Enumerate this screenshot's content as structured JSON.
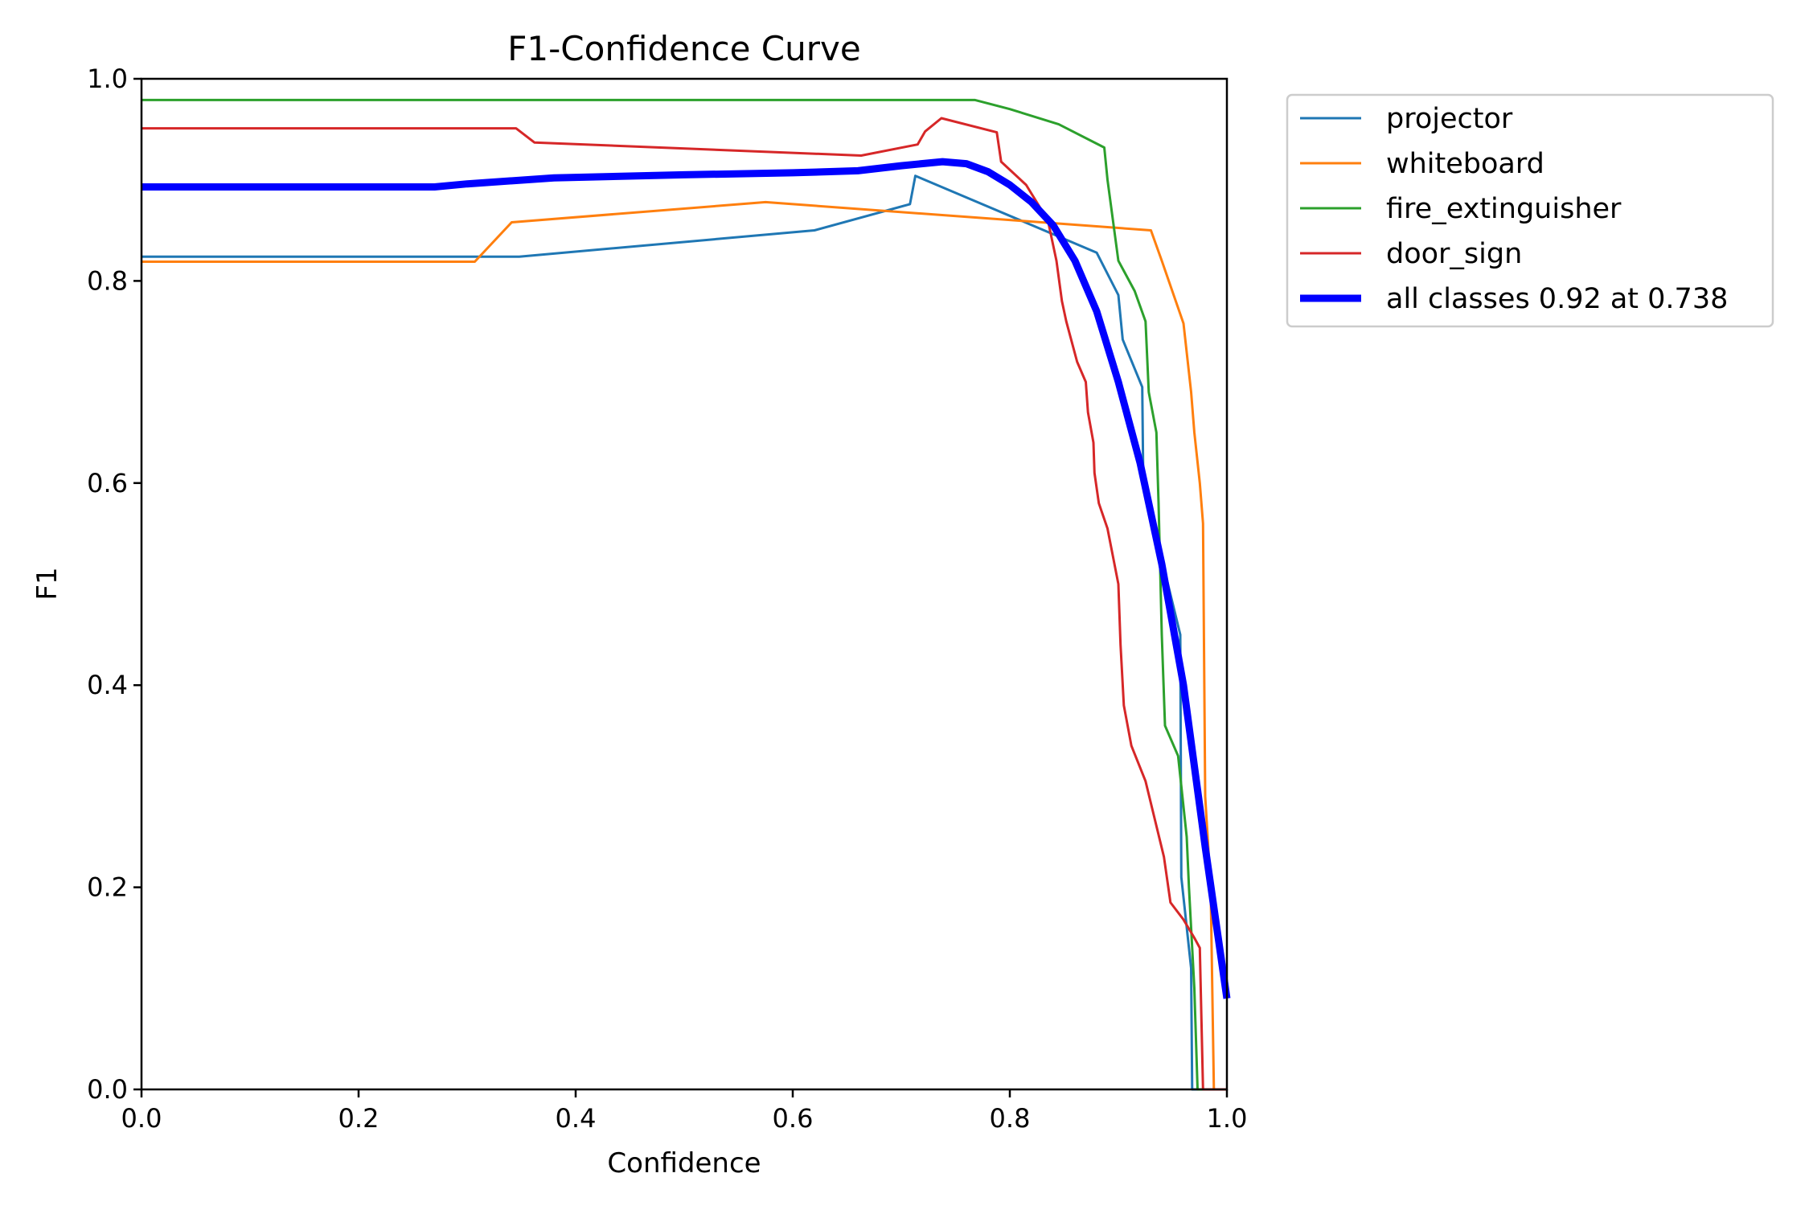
{
  "chart_data": {
    "type": "line",
    "title": "F1-Confidence Curve",
    "xlabel": "Confidence",
    "ylabel": "F1",
    "xlim": [
      0,
      1
    ],
    "ylim": [
      0,
      1
    ],
    "xticks": [
      "0.0",
      "0.2",
      "0.4",
      "0.6",
      "0.8",
      "1.0"
    ],
    "yticks": [
      "0.0",
      "0.2",
      "0.4",
      "0.6",
      "0.8",
      "1.0"
    ],
    "grid": false,
    "legend_position": "outside-top-right",
    "series": [
      {
        "name": "projector",
        "color": "#1f77b4",
        "emphasis": false,
        "points": [
          [
            0,
            0.824
          ],
          [
            0.348,
            0.824
          ],
          [
            0.62,
            0.85
          ],
          [
            0.708,
            0.876
          ],
          [
            0.713,
            0.904
          ],
          [
            0.88,
            0.828
          ],
          [
            0.9,
            0.786
          ],
          [
            0.904,
            0.742
          ],
          [
            0.922,
            0.695
          ],
          [
            0.923,
            0.6
          ],
          [
            0.957,
            0.45
          ],
          [
            0.958,
            0.21
          ],
          [
            0.967,
            0.12
          ],
          [
            0.968,
            0.0
          ],
          [
            1.0,
            0.0
          ]
        ]
      },
      {
        "name": "whiteboard",
        "color": "#ff7f0e",
        "emphasis": false,
        "points": [
          [
            0,
            0.819
          ],
          [
            0.307,
            0.819
          ],
          [
            0.341,
            0.858
          ],
          [
            0.575,
            0.878
          ],
          [
            0.93,
            0.85
          ],
          [
            0.94,
            0.82
          ],
          [
            0.96,
            0.758
          ],
          [
            0.967,
            0.69
          ],
          [
            0.97,
            0.65
          ],
          [
            0.975,
            0.6
          ],
          [
            0.978,
            0.56
          ],
          [
            0.98,
            0.29
          ],
          [
            0.985,
            0.2
          ],
          [
            0.988,
            0.0
          ],
          [
            1.0,
            0.0
          ]
        ]
      },
      {
        "name": "fire_extinguisher",
        "color": "#2ca02c",
        "emphasis": false,
        "points": [
          [
            0,
            0.979
          ],
          [
            0.768,
            0.979
          ],
          [
            0.8,
            0.97
          ],
          [
            0.845,
            0.955
          ],
          [
            0.887,
            0.932
          ],
          [
            0.89,
            0.9
          ],
          [
            0.9,
            0.82
          ],
          [
            0.915,
            0.79
          ],
          [
            0.925,
            0.76
          ],
          [
            0.928,
            0.69
          ],
          [
            0.935,
            0.65
          ],
          [
            0.937,
            0.58
          ],
          [
            0.94,
            0.45
          ],
          [
            0.943,
            0.36
          ],
          [
            0.955,
            0.33
          ],
          [
            0.963,
            0.25
          ],
          [
            0.965,
            0.2
          ],
          [
            0.97,
            0.1
          ],
          [
            0.973,
            0.0
          ],
          [
            1.0,
            0.0
          ]
        ]
      },
      {
        "name": "door_sign",
        "color": "#d62728",
        "emphasis": false,
        "points": [
          [
            0,
            0.951
          ],
          [
            0.345,
            0.951
          ],
          [
            0.362,
            0.937
          ],
          [
            0.663,
            0.924
          ],
          [
            0.715,
            0.935
          ],
          [
            0.722,
            0.948
          ],
          [
            0.737,
            0.961
          ],
          [
            0.788,
            0.947
          ],
          [
            0.792,
            0.918
          ],
          [
            0.815,
            0.895
          ],
          [
            0.835,
            0.86
          ],
          [
            0.843,
            0.82
          ],
          [
            0.848,
            0.78
          ],
          [
            0.852,
            0.76
          ],
          [
            0.862,
            0.72
          ],
          [
            0.87,
            0.7
          ],
          [
            0.872,
            0.67
          ],
          [
            0.877,
            0.64
          ],
          [
            0.878,
            0.61
          ],
          [
            0.882,
            0.58
          ],
          [
            0.89,
            0.555
          ],
          [
            0.9,
            0.5
          ],
          [
            0.902,
            0.44
          ],
          [
            0.905,
            0.38
          ],
          [
            0.912,
            0.34
          ],
          [
            0.925,
            0.305
          ],
          [
            0.942,
            0.23
          ],
          [
            0.948,
            0.185
          ],
          [
            0.96,
            0.168
          ],
          [
            0.97,
            0.15
          ],
          [
            0.975,
            0.14
          ],
          [
            0.978,
            0.0
          ],
          [
            1.0,
            0.0
          ]
        ]
      },
      {
        "name": "all classes 0.92 at 0.738",
        "color": "#0000ff",
        "emphasis": true,
        "points": [
          [
            0,
            0.893
          ],
          [
            0.27,
            0.893
          ],
          [
            0.3,
            0.896
          ],
          [
            0.38,
            0.902
          ],
          [
            0.5,
            0.905
          ],
          [
            0.6,
            0.907
          ],
          [
            0.66,
            0.909
          ],
          [
            0.7,
            0.914
          ],
          [
            0.738,
            0.918
          ],
          [
            0.76,
            0.916
          ],
          [
            0.78,
            0.908
          ],
          [
            0.8,
            0.895
          ],
          [
            0.82,
            0.878
          ],
          [
            0.84,
            0.855
          ],
          [
            0.86,
            0.82
          ],
          [
            0.88,
            0.77
          ],
          [
            0.9,
            0.7
          ],
          [
            0.92,
            0.62
          ],
          [
            0.94,
            0.52
          ],
          [
            0.96,
            0.4
          ],
          [
            0.98,
            0.24
          ],
          [
            1.0,
            0.09
          ]
        ]
      }
    ]
  }
}
